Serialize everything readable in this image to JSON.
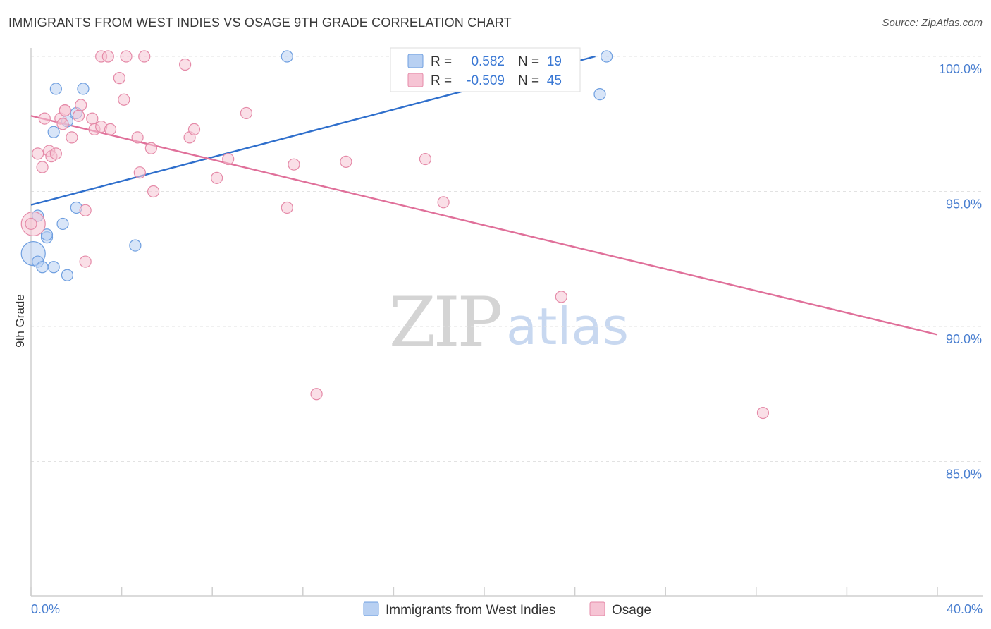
{
  "title": "IMMIGRANTS FROM WEST INDIES VS OSAGE 9TH GRADE CORRELATION CHART",
  "source": "Source: ZipAtlas.com",
  "watermark": {
    "zip": "ZIP",
    "atlas": "atlas"
  },
  "colors": {
    "blue_fill": "#b8d0f2",
    "blue_stroke": "#6f9fe0",
    "blue_line": "#2f6fcc",
    "pink_fill": "#f6c4d4",
    "pink_stroke": "#e58aa8",
    "pink_line": "#e0709a",
    "tick_text": "#4a7fd0",
    "grid": "#e2e2e2"
  },
  "legend": {
    "blue": {
      "r_label": "R =",
      "r_value": "0.582",
      "n_label": "N =",
      "n_value": "19"
    },
    "pink": {
      "r_label": "R =",
      "r_value": "-0.509",
      "n_label": "N =",
      "n_value": "45"
    }
  },
  "chart_data": {
    "type": "scatter",
    "title": "IMMIGRANTS FROM WEST INDIES VS OSAGE 9TH GRADE CORRELATION CHART",
    "xlabel": "",
    "ylabel": "9th Grade",
    "xlim": [
      0,
      40
    ],
    "ylim": [
      80.5,
      100.7
    ],
    "x_tick_labels": [
      {
        "value": 0,
        "label": "0.0%"
      },
      {
        "value": 40,
        "label": "40.0%"
      }
    ],
    "y_ticks": [
      {
        "value": 100,
        "label": "100.0%"
      },
      {
        "value": 95,
        "label": "95.0%"
      },
      {
        "value": 90,
        "label": "90.0%"
      },
      {
        "value": 85,
        "label": "85.0%"
      }
    ],
    "x_minor_ticks": [
      0,
      4,
      8,
      12,
      16,
      20,
      24,
      28,
      32,
      36,
      40
    ],
    "series": [
      {
        "name": "Immigrants from West Indies",
        "color": "blue",
        "points": [
          [
            0.1,
            92.7
          ],
          [
            0.3,
            92.4
          ],
          [
            0.5,
            92.2
          ],
          [
            0.7,
            93.3
          ],
          [
            0.7,
            93.4
          ],
          [
            1.0,
            97.2
          ],
          [
            1.1,
            98.8
          ],
          [
            1.0,
            92.2
          ],
          [
            1.4,
            93.8
          ],
          [
            1.6,
            91.9
          ],
          [
            1.6,
            97.6
          ],
          [
            2.0,
            97.9
          ],
          [
            2.0,
            94.4
          ],
          [
            2.3,
            98.8
          ],
          [
            4.6,
            93.0
          ],
          [
            11.3,
            100.0
          ],
          [
            0.3,
            94.1
          ],
          [
            25.1,
            98.6
          ],
          [
            25.4,
            100.0
          ]
        ],
        "trend": {
          "x": [
            0,
            24.9
          ],
          "y": [
            94.5,
            100.0
          ]
        }
      },
      {
        "name": "Osage",
        "color": "pink",
        "points": [
          [
            0.1,
            93.8
          ],
          [
            0.3,
            96.4
          ],
          [
            0.5,
            95.9
          ],
          [
            0.6,
            97.7
          ],
          [
            0.8,
            96.5
          ],
          [
            0.9,
            96.3
          ],
          [
            1.1,
            96.4
          ],
          [
            1.3,
            97.7
          ],
          [
            1.4,
            97.5
          ],
          [
            1.5,
            98.0
          ],
          [
            1.8,
            97.0
          ],
          [
            2.1,
            97.8
          ],
          [
            2.2,
            98.2
          ],
          [
            2.4,
            94.3
          ],
          [
            2.4,
            92.4
          ],
          [
            2.7,
            97.7
          ],
          [
            2.8,
            97.3
          ],
          [
            3.1,
            97.4
          ],
          [
            3.1,
            100.0
          ],
          [
            3.4,
            100.0
          ],
          [
            3.5,
            97.3
          ],
          [
            3.9,
            99.2
          ],
          [
            4.1,
            98.4
          ],
          [
            4.2,
            100.0
          ],
          [
            4.7,
            97.0
          ],
          [
            4.8,
            95.7
          ],
          [
            5.0,
            100.0
          ],
          [
            5.3,
            96.6
          ],
          [
            5.4,
            95.0
          ],
          [
            6.8,
            99.7
          ],
          [
            7.0,
            97.0
          ],
          [
            7.2,
            97.3
          ],
          [
            8.2,
            95.5
          ],
          [
            8.7,
            96.2
          ],
          [
            9.5,
            97.9
          ],
          [
            11.3,
            94.4
          ],
          [
            11.6,
            96.0
          ],
          [
            12.6,
            87.5
          ],
          [
            13.9,
            96.1
          ],
          [
            17.4,
            96.2
          ],
          [
            18.2,
            94.6
          ],
          [
            23.4,
            91.1
          ],
          [
            32.3,
            86.8
          ],
          [
            0.0,
            93.8
          ],
          [
            1.5,
            98.0
          ]
        ],
        "trend": {
          "x": [
            0,
            40
          ],
          "y": [
            97.8,
            89.7
          ]
        }
      }
    ]
  },
  "bottom_legend": [
    {
      "key": "blue",
      "label": "Immigrants from West Indies"
    },
    {
      "key": "pink",
      "label": "Osage"
    }
  ]
}
